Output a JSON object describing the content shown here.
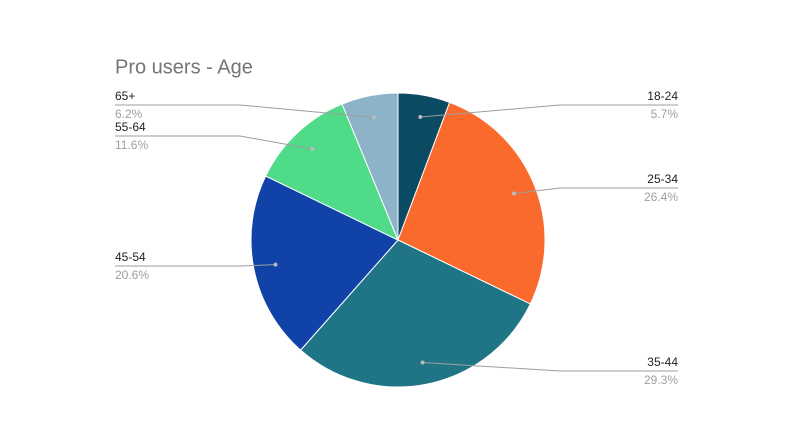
{
  "chart_data": {
    "type": "pie",
    "title": "Pro users - Age",
    "categories": [
      "18-24",
      "25-34",
      "35-44",
      "45-54",
      "55-64",
      "65+"
    ],
    "values": [
      5.7,
      26.4,
      29.3,
      20.6,
      11.6,
      6.2
    ],
    "value_labels": [
      "5.7%",
      "26.4%",
      "29.3%",
      "20.6%",
      "11.6%",
      "6.2%"
    ],
    "colors": [
      "#0b4a63",
      "#fa6a2c",
      "#1f7585",
      "#1142a8",
      "#4fdb87",
      "#8db3c9"
    ]
  }
}
